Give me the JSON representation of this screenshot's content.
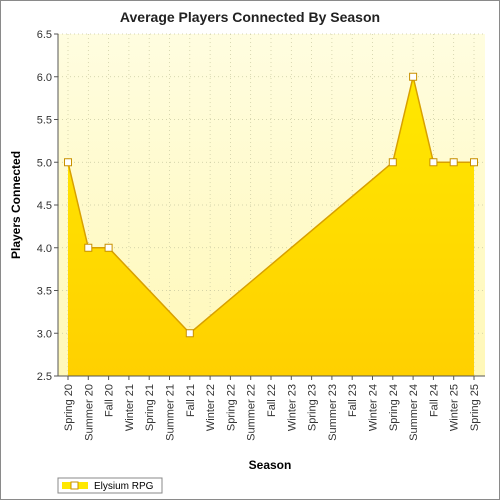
{
  "chart_data": {
    "type": "area",
    "title": "Average Players Connected By Season",
    "xlabel": "Season",
    "ylabel": "Players Connected",
    "ylim": [
      2.5,
      6.5
    ],
    "yticks": [
      "2.5",
      "3.0",
      "3.5",
      "4.0",
      "4.5",
      "5.0",
      "5.5",
      "6.0",
      "6.5"
    ],
    "categories": [
      "Spring 20",
      "Summer 20",
      "Fall 20",
      "Winter 21",
      "Spring 21",
      "Summer 21",
      "Fall 21",
      "Winter 22",
      "Spring 22",
      "Summer 22",
      "Fall 22",
      "Winter 23",
      "Spring 23",
      "Summer 23",
      "Fall 23",
      "Winter 24",
      "Spring 24",
      "Summer 24",
      "Fall 24",
      "Winter 25",
      "Spring 25"
    ],
    "series": [
      {
        "name": "Elysium RPG",
        "values": [
          5.0,
          4.0,
          4.0,
          null,
          null,
          null,
          3.0,
          null,
          null,
          null,
          null,
          null,
          null,
          null,
          null,
          null,
          5.0,
          6.0,
          5.0,
          5.0,
          5.0
        ]
      }
    ],
    "grid": true,
    "legend": "bottom-left",
    "colors": {
      "plot_bg_top": "#fffde0",
      "plot_bg_bottom": "#fff8b8",
      "area_top": "#ffe800",
      "area_bottom": "#ffd000",
      "line": "#d8a000",
      "grid": "#c8c8a0"
    }
  }
}
